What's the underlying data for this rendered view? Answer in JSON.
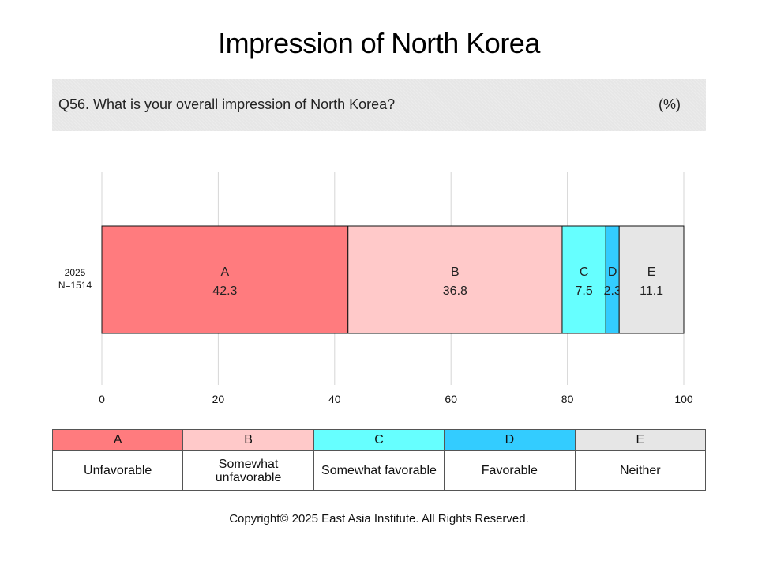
{
  "title": "Impression of North Korea",
  "question": "Q56. What is your overall impression of North Korea?",
  "unit": "(%)",
  "row": {
    "year": "2025",
    "n": "N=1514"
  },
  "legend": [
    {
      "key": "A",
      "label": "Unfavorable",
      "color": "#ff7b7e"
    },
    {
      "key": "B",
      "label": "Somewhat unfavorable",
      "color": "#ffc9c9"
    },
    {
      "key": "C",
      "label": "Somewhat favorable",
      "color": "#66ffff"
    },
    {
      "key": "D",
      "label": "Favorable",
      "color": "#33ccff"
    },
    {
      "key": "E",
      "label": "Neither",
      "color": "#e6e6e6"
    }
  ],
  "copyright": "Copyright© 2025 East Asia Institute. All Rights Reserved.",
  "chart_data": {
    "type": "bar",
    "orientation": "horizontal-stacked",
    "categories": [
      "2025 N=1514"
    ],
    "series": [
      {
        "name": "A",
        "values": [
          42.3
        ]
      },
      {
        "name": "B",
        "values": [
          36.8
        ]
      },
      {
        "name": "C",
        "values": [
          7.5
        ]
      },
      {
        "name": "D",
        "values": [
          2.3
        ]
      },
      {
        "name": "E",
        "values": [
          11.1
        ]
      }
    ],
    "xlim": [
      0,
      100
    ],
    "xticks": [
      0,
      20,
      40,
      60,
      80,
      100
    ],
    "grid": true
  }
}
